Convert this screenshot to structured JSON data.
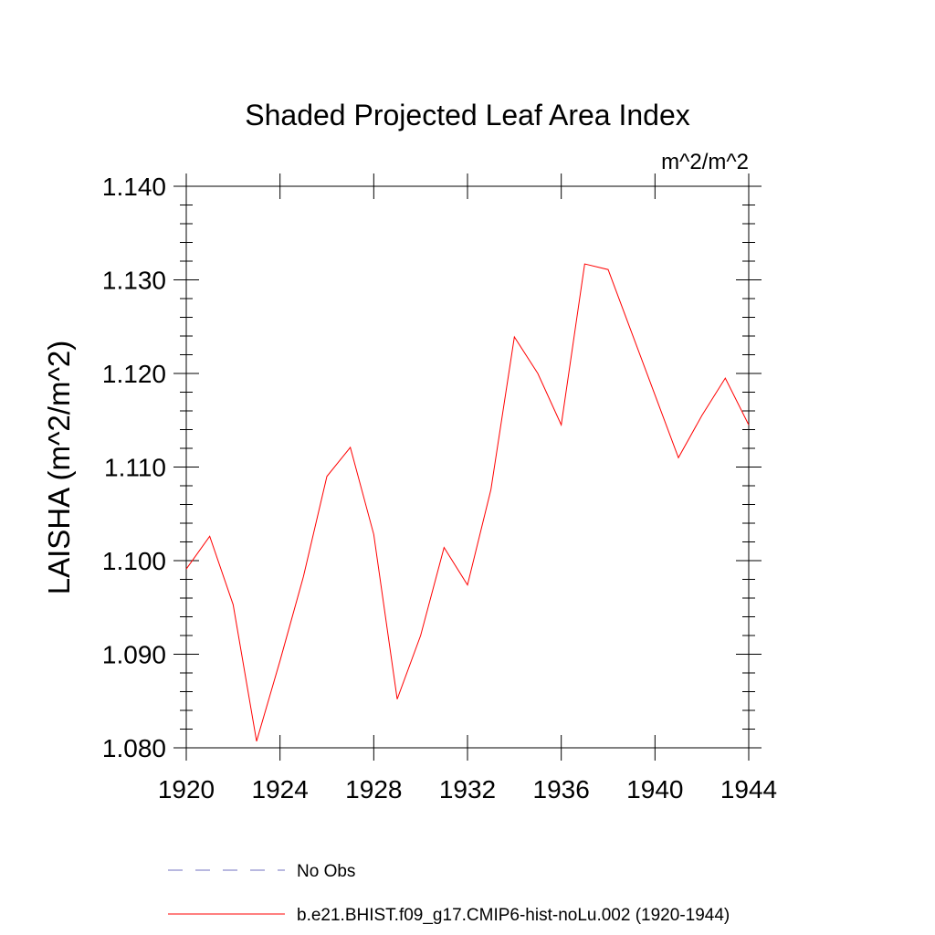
{
  "chart_data": {
    "type": "line",
    "title": "Shaded Projected Leaf Area Index",
    "units": "m^2/m^2",
    "ylabel": "LAISHA  (m^2/m^2)",
    "xlabel": "",
    "xlim": [
      1920,
      1944
    ],
    "ylim": [
      1.08,
      1.14
    ],
    "x_ticks": [
      1920,
      1924,
      1928,
      1932,
      1936,
      1940,
      1944
    ],
    "x_tick_labels": [
      "1920",
      "1924",
      "1928",
      "1932",
      "1936",
      "1940",
      "1944"
    ],
    "y_ticks": [
      1.08,
      1.09,
      1.1,
      1.11,
      1.12,
      1.13,
      1.14
    ],
    "y_tick_labels": [
      "1.080",
      "1.090",
      "1.100",
      "1.110",
      "1.120",
      "1.130",
      "1.140"
    ],
    "grid": false,
    "legend_position": "bottom",
    "series": [
      {
        "name": "b.e21.BHIST.f09_g17.CMIP6-hist-noLu.002 (1920-1944)",
        "color": "#ff0000",
        "style": "solid",
        "x": [
          1920,
          1921,
          1922,
          1923,
          1924,
          1925,
          1926,
          1927,
          1928,
          1929,
          1930,
          1931,
          1932,
          1933,
          1934,
          1935,
          1936,
          1937,
          1938,
          1939,
          1940,
          1941,
          1942,
          1943,
          1944
        ],
        "y": [
          1.0991,
          1.1026,
          1.0953,
          1.0807,
          1.0893,
          1.0983,
          1.109,
          1.1121,
          1.1028,
          1.0852,
          1.092,
          1.1014,
          1.0974,
          1.1076,
          1.1239,
          1.12,
          1.1145,
          1.1317,
          1.1311,
          1.1244,
          1.1177,
          1.111,
          1.1155,
          1.1195,
          1.1145
        ]
      },
      {
        "name": "No Obs",
        "color": "#7070c0",
        "style": "dashed",
        "x": [],
        "y": []
      }
    ]
  }
}
